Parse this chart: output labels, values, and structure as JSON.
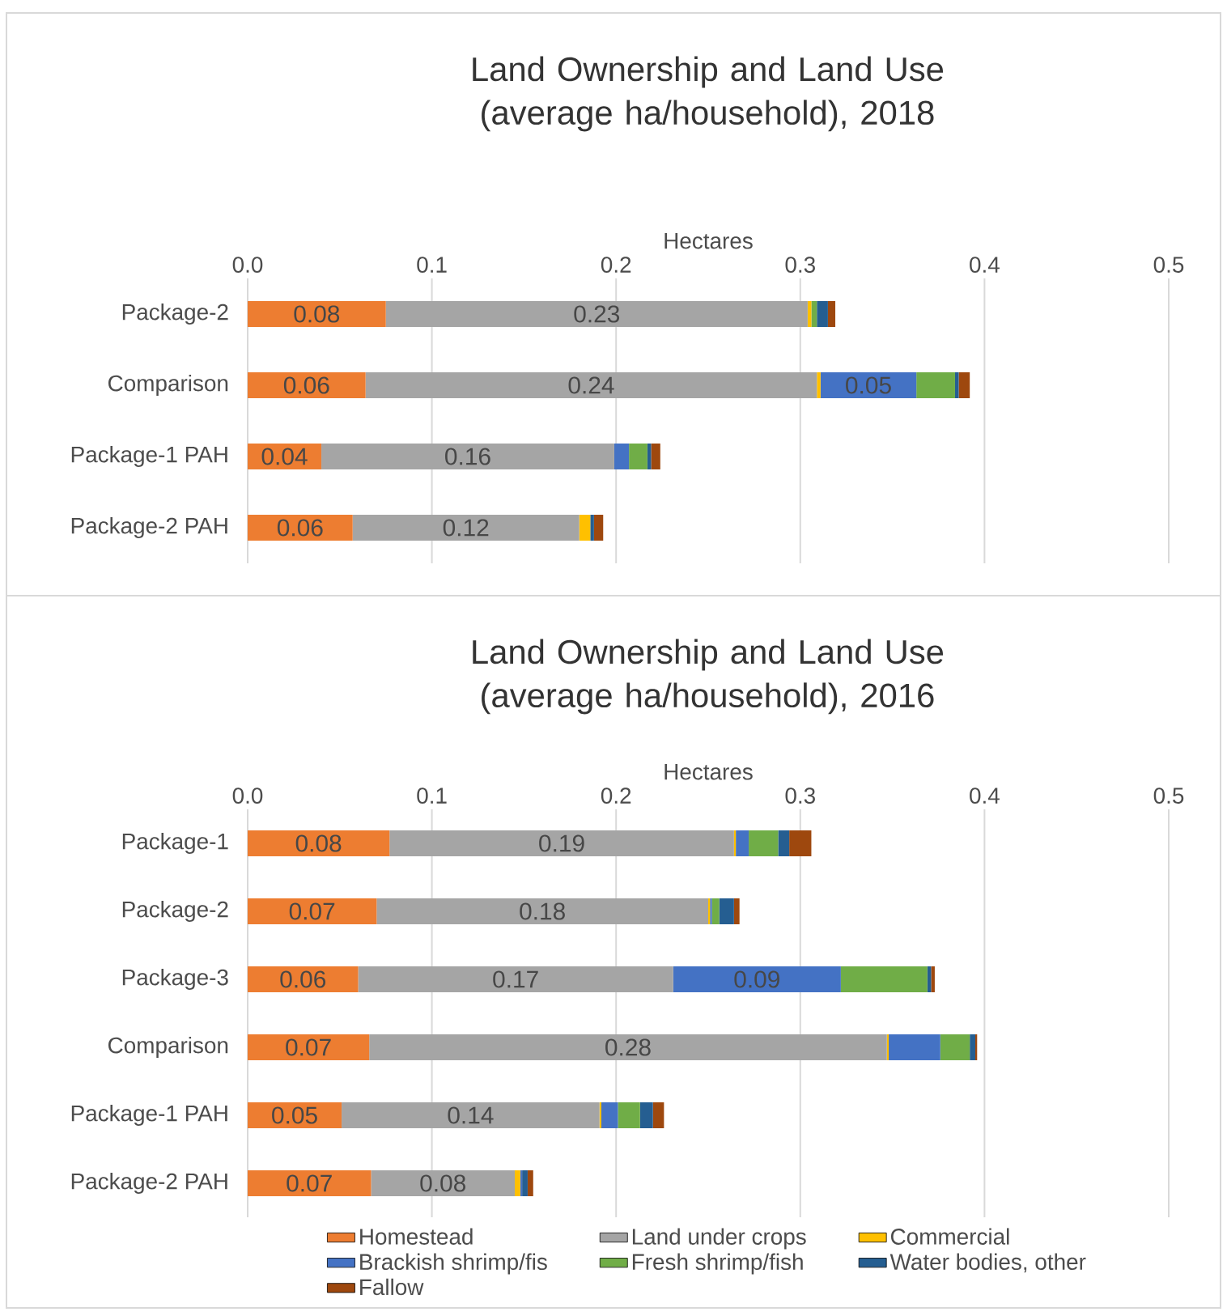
{
  "chart_data": [
    {
      "type": "bar",
      "orientation": "horizontal",
      "stacked": true,
      "title": "Land Ownership and Land Use (average ha/household), 2018",
      "xlabel": "Hectares",
      "categories": [
        "Package-2",
        "Comparison",
        "Package-1 PAH",
        "Package-2 PAH"
      ],
      "xlim": [
        0,
        0.5
      ],
      "xticks": [
        {
          "value": 0,
          "label": "0.0"
        },
        0.1,
        0.2,
        0.3,
        0.4,
        0.5
      ],
      "grid": "x",
      "legend": false,
      "series": [
        {
          "color": "#ed7d31",
          "values": [
            0.075,
            0.064,
            0.04,
            0.057
          ],
          "value_labels": [
            "0.08",
            "0.06",
            "0.04",
            "0.06"
          ]
        },
        {
          "color": "#a5a5a5",
          "values": [
            0.229,
            0.245,
            0.159,
            0.123
          ],
          "value_labels": [
            "0.23",
            "0.24",
            "0.16",
            "0.12"
          ]
        },
        {
          "color": "#ffc000",
          "values": [
            0.002,
            0.002,
            0,
            0.006
          ]
        },
        {
          "color": "#4472c4",
          "values": [
            0,
            0.052,
            0.008,
            0
          ],
          "value_labels": [
            null,
            "0.05",
            null,
            null
          ]
        },
        {
          "color": "#70ad47",
          "values": [
            0.003,
            0.021,
            0.01,
            0
          ]
        },
        {
          "color": "#255e91",
          "values": [
            0.006,
            0.002,
            0.002,
            0.002
          ]
        },
        {
          "color": "#9e480e",
          "values": [
            0.004,
            0.006,
            0.005,
            0.005
          ]
        }
      ]
    },
    {
      "type": "bar",
      "orientation": "horizontal",
      "stacked": true,
      "title": "Land Ownership and Land Use (average ha/household), 2016",
      "xlabel": "Hectares",
      "categories": [
        "Package-1",
        "Package-2",
        "Package-3",
        "Comparison",
        "Package-1 PAH",
        "Package-2 PAH"
      ],
      "xlim": [
        0,
        0.5
      ],
      "xticks": [
        {
          "value": 0,
          "label": "0.0"
        },
        0.1,
        0.2,
        0.3,
        0.4,
        0.5
      ],
      "grid": "x",
      "legend": "bottom",
      "series": [
        {
          "name": "Homestead",
          "color": "#ed7d31",
          "values": [
            0.077,
            0.07,
            0.06,
            0.066,
            0.051,
            0.067
          ],
          "value_labels": [
            "0.08",
            "0.07",
            "0.06",
            "0.07",
            "0.05",
            "0.07"
          ]
        },
        {
          "name": "Land under crops",
          "color": "#a5a5a5",
          "values": [
            0.187,
            0.18,
            0.171,
            0.281,
            0.14,
            0.078
          ],
          "value_labels": [
            "0.19",
            "0.18",
            "0.17",
            "0.28",
            "0.14",
            "0.08"
          ]
        },
        {
          "name": "Commercial",
          "color": "#ffc000",
          "values": [
            0.001,
            0.001,
            0,
            0.001,
            0.001,
            0.003
          ]
        },
        {
          "name": "Brackish shrimp/fis",
          "color": "#4472c4",
          "values": [
            0.007,
            0.001,
            0.091,
            0.028,
            0.009,
            0.001
          ],
          "value_labels": [
            null,
            null,
            "0.09",
            null,
            null,
            null
          ]
        },
        {
          "name": "Fresh shrimp/fish",
          "color": "#70ad47",
          "values": [
            0.016,
            0.004,
            0.047,
            0.016,
            0.012,
            0
          ]
        },
        {
          "name": "Water bodies, other",
          "color": "#255e91",
          "values": [
            0.006,
            0.008,
            0.002,
            0.003,
            0.007,
            0.003
          ]
        },
        {
          "name": "Fallow",
          "color": "#9e480e",
          "values": [
            0.012,
            0.003,
            0.002,
            0.001,
            0.006,
            0.003
          ]
        }
      ]
    }
  ]
}
